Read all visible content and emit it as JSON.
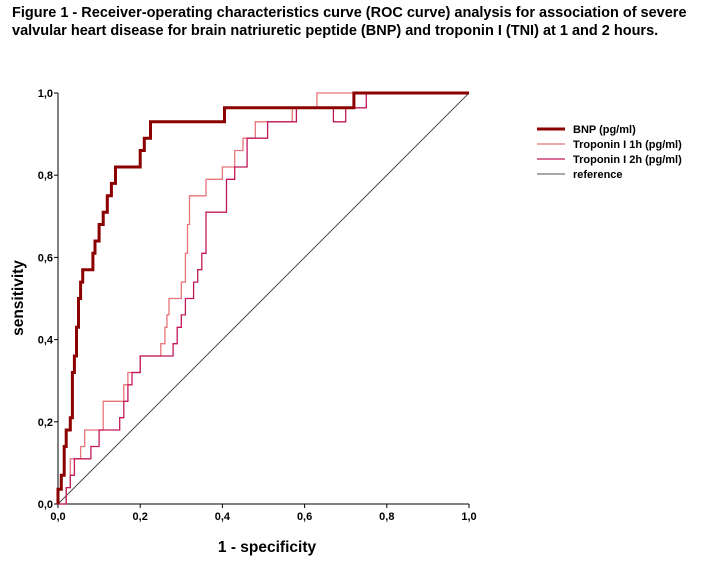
{
  "figure": {
    "title": "Figure 1 - Receiver-operating characteristics curve (ROC curve) analysis for association of severe valvular heart disease for brain natriuretic peptide (BNP) and troponin I (TNI) at 1 and 2 hours."
  },
  "chart_data": {
    "type": "line",
    "xlabel": "1 - specificity",
    "ylabel": "sensitivity",
    "xlim": [
      0,
      1
    ],
    "ylim": [
      0,
      1
    ],
    "x_ticks": [
      "0,0",
      "0,2",
      "0,4",
      "0,6",
      "0,8",
      "1,0"
    ],
    "y_ticks": [
      "0,0",
      "0,2",
      "0,4",
      "0,6",
      "0,8",
      "1,0"
    ],
    "grid": false,
    "legend_position": "top-right",
    "series": [
      {
        "name": "BNP (pg/ml)",
        "color": "#8B0000",
        "points": [
          [
            0,
            0
          ],
          [
            0,
            0.036
          ],
          [
            0.008,
            0.036
          ],
          [
            0.008,
            0.07
          ],
          [
            0.015,
            0.07
          ],
          [
            0.015,
            0.14
          ],
          [
            0.02,
            0.14
          ],
          [
            0.02,
            0.18
          ],
          [
            0.03,
            0.18
          ],
          [
            0.03,
            0.21
          ],
          [
            0.035,
            0.21
          ],
          [
            0.035,
            0.32
          ],
          [
            0.04,
            0.32
          ],
          [
            0.04,
            0.36
          ],
          [
            0.045,
            0.36
          ],
          [
            0.045,
            0.43
          ],
          [
            0.05,
            0.43
          ],
          [
            0.05,
            0.5
          ],
          [
            0.055,
            0.5
          ],
          [
            0.055,
            0.54
          ],
          [
            0.06,
            0.54
          ],
          [
            0.06,
            0.57
          ],
          [
            0.085,
            0.57
          ],
          [
            0.085,
            0.61
          ],
          [
            0.09,
            0.61
          ],
          [
            0.09,
            0.64
          ],
          [
            0.1,
            0.64
          ],
          [
            0.1,
            0.68
          ],
          [
            0.11,
            0.68
          ],
          [
            0.11,
            0.71
          ],
          [
            0.12,
            0.71
          ],
          [
            0.12,
            0.75
          ],
          [
            0.13,
            0.75
          ],
          [
            0.13,
            0.78
          ],
          [
            0.14,
            0.78
          ],
          [
            0.14,
            0.82
          ],
          [
            0.2,
            0.82
          ],
          [
            0.2,
            0.86
          ],
          [
            0.21,
            0.86
          ],
          [
            0.21,
            0.89
          ],
          [
            0.225,
            0.89
          ],
          [
            0.225,
            0.93
          ],
          [
            0.405,
            0.93
          ],
          [
            0.405,
            0.964
          ],
          [
            0.72,
            0.964
          ],
          [
            0.72,
            1
          ],
          [
            1,
            1
          ]
        ]
      },
      {
        "name": "Troponin I 1h (pg/ml)",
        "color": "#E8757A",
        "points": [
          [
            0,
            0
          ],
          [
            0.02,
            0
          ],
          [
            0.02,
            0.04
          ],
          [
            0.03,
            0.04
          ],
          [
            0.03,
            0.11
          ],
          [
            0.055,
            0.11
          ],
          [
            0.055,
            0.14
          ],
          [
            0.065,
            0.14
          ],
          [
            0.065,
            0.18
          ],
          [
            0.11,
            0.18
          ],
          [
            0.11,
            0.25
          ],
          [
            0.16,
            0.25
          ],
          [
            0.16,
            0.29
          ],
          [
            0.17,
            0.29
          ],
          [
            0.17,
            0.32
          ],
          [
            0.2,
            0.32
          ],
          [
            0.2,
            0.36
          ],
          [
            0.25,
            0.36
          ],
          [
            0.25,
            0.39
          ],
          [
            0.26,
            0.39
          ],
          [
            0.26,
            0.43
          ],
          [
            0.265,
            0.43
          ],
          [
            0.265,
            0.46
          ],
          [
            0.27,
            0.46
          ],
          [
            0.27,
            0.5
          ],
          [
            0.3,
            0.5
          ],
          [
            0.3,
            0.54
          ],
          [
            0.31,
            0.54
          ],
          [
            0.31,
            0.61
          ],
          [
            0.315,
            0.61
          ],
          [
            0.315,
            0.68
          ],
          [
            0.32,
            0.68
          ],
          [
            0.32,
            0.75
          ],
          [
            0.36,
            0.75
          ],
          [
            0.36,
            0.79
          ],
          [
            0.4,
            0.79
          ],
          [
            0.4,
            0.82
          ],
          [
            0.43,
            0.82
          ],
          [
            0.43,
            0.86
          ],
          [
            0.45,
            0.86
          ],
          [
            0.45,
            0.89
          ],
          [
            0.48,
            0.89
          ],
          [
            0.48,
            0.93
          ],
          [
            0.57,
            0.93
          ],
          [
            0.57,
            0.964
          ],
          [
            0.63,
            0.964
          ],
          [
            0.63,
            1
          ],
          [
            1,
            1
          ]
        ]
      },
      {
        "name": "Troponin I 2h (pg/ml)",
        "color": "#C2185B",
        "points": [
          [
            0,
            0
          ],
          [
            0.02,
            0
          ],
          [
            0.02,
            0.04
          ],
          [
            0.03,
            0.04
          ],
          [
            0.03,
            0.07
          ],
          [
            0.04,
            0.07
          ],
          [
            0.04,
            0.11
          ],
          [
            0.08,
            0.11
          ],
          [
            0.08,
            0.14
          ],
          [
            0.1,
            0.14
          ],
          [
            0.1,
            0.18
          ],
          [
            0.15,
            0.18
          ],
          [
            0.15,
            0.21
          ],
          [
            0.16,
            0.21
          ],
          [
            0.16,
            0.25
          ],
          [
            0.17,
            0.25
          ],
          [
            0.17,
            0.29
          ],
          [
            0.18,
            0.29
          ],
          [
            0.18,
            0.32
          ],
          [
            0.2,
            0.32
          ],
          [
            0.2,
            0.36
          ],
          [
            0.28,
            0.36
          ],
          [
            0.28,
            0.39
          ],
          [
            0.29,
            0.39
          ],
          [
            0.29,
            0.43
          ],
          [
            0.3,
            0.43
          ],
          [
            0.3,
            0.46
          ],
          [
            0.31,
            0.46
          ],
          [
            0.31,
            0.5
          ],
          [
            0.33,
            0.5
          ],
          [
            0.33,
            0.54
          ],
          [
            0.34,
            0.54
          ],
          [
            0.34,
            0.57
          ],
          [
            0.35,
            0.57
          ],
          [
            0.35,
            0.61
          ],
          [
            0.36,
            0.61
          ],
          [
            0.36,
            0.71
          ],
          [
            0.41,
            0.71
          ],
          [
            0.41,
            0.79
          ],
          [
            0.43,
            0.79
          ],
          [
            0.43,
            0.82
          ],
          [
            0.46,
            0.82
          ],
          [
            0.46,
            0.89
          ],
          [
            0.51,
            0.89
          ],
          [
            0.51,
            0.93
          ],
          [
            0.58,
            0.93
          ],
          [
            0.58,
            0.964
          ],
          [
            0.67,
            0.964
          ],
          [
            0.67,
            0.93
          ],
          [
            0.7,
            0.93
          ],
          [
            0.7,
            0.964
          ],
          [
            0.75,
            0.964
          ],
          [
            0.75,
            1
          ],
          [
            1,
            1
          ]
        ]
      },
      {
        "name": "reference",
        "color": "#505050",
        "points": [
          [
            0,
            0
          ],
          [
            1,
            1
          ]
        ]
      }
    ]
  }
}
